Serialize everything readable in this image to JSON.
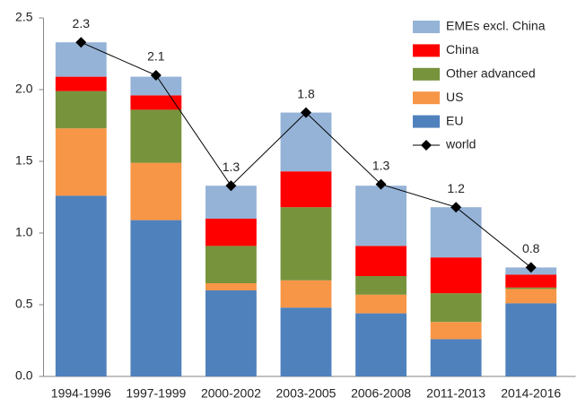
{
  "chart_data": {
    "type": "bar",
    "stacked": true,
    "categories": [
      "1994-1996",
      "1997-1999",
      "2000-2002",
      "2003-2005",
      "2006-2008",
      "2011-2013",
      "2014-2016"
    ],
    "series": [
      {
        "name": "EU",
        "color": "#4f81bd",
        "values": [
          1.26,
          1.09,
          0.6,
          0.48,
          0.44,
          0.26,
          0.51
        ]
      },
      {
        "name": "US",
        "color": "#f79646",
        "values": [
          0.47,
          0.4,
          0.05,
          0.19,
          0.13,
          0.12,
          0.1
        ]
      },
      {
        "name": "Other advanced",
        "color": "#77933c",
        "values": [
          0.26,
          0.37,
          0.26,
          0.51,
          0.13,
          0.2,
          0.01
        ]
      },
      {
        "name": "China",
        "color": "#ff0000",
        "values": [
          0.1,
          0.1,
          0.19,
          0.25,
          0.21,
          0.25,
          0.09
        ]
      },
      {
        "name": "EMEs excl. China",
        "color": "#95b3d7",
        "values": [
          0.24,
          0.13,
          0.23,
          0.41,
          0.42,
          0.35,
          0.05
        ]
      },
      {
        "name": "world",
        "type": "line",
        "color": "#000000",
        "values": [
          2.33,
          2.1,
          1.33,
          1.84,
          1.34,
          1.18,
          0.76
        ],
        "value_labels": [
          "2.3",
          "2.1",
          "1.3",
          "1.8",
          "1.3",
          "1.2",
          "0.8"
        ]
      }
    ],
    "ylim": [
      0,
      2.5
    ],
    "yticks": [
      {
        "value": 0,
        "label": "0.0"
      },
      0.5,
      {
        "value": 1,
        "label": "1.0"
      },
      1.5,
      {
        "value": 2,
        "label": "2.0"
      },
      2.5
    ],
    "grid": false,
    "legend": "top-right"
  }
}
